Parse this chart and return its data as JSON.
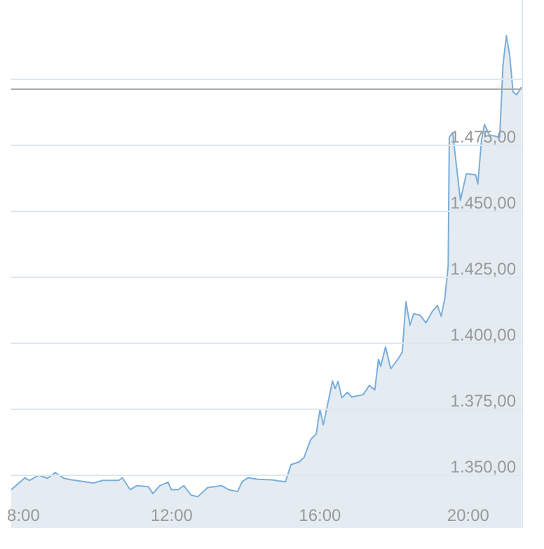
{
  "chart_data": {
    "type": "area",
    "x": [
      7.67,
      8.04,
      8.16,
      8.41,
      8.65,
      8.86,
      9.09,
      9.27,
      9.89,
      10.14,
      10.57,
      10.67,
      10.88,
      11.06,
      11.37,
      11.49,
      11.68,
      11.9,
      11.99,
      12.17,
      12.33,
      12.52,
      12.7,
      12.97,
      13.35,
      13.53,
      13.78,
      13.9,
      14.06,
      14.33,
      14.7,
      14.89,
      15.07,
      15.22,
      15.44,
      15.57,
      15.75,
      15.9,
      16.0,
      16.09,
      16.34,
      16.41,
      16.49,
      16.59,
      16.74,
      16.86,
      17.17,
      17.33,
      17.48,
      17.58,
      17.64,
      17.77,
      17.91,
      18.1,
      18.22,
      18.32,
      18.43,
      18.53,
      18.71,
      18.86,
      19.03,
      19.17,
      19.27,
      19.37,
      19.46,
      19.49,
      19.58,
      19.79,
      19.95,
      20.2,
      20.26,
      20.36,
      20.44,
      20.57,
      20.85,
      20.94,
      21.03,
      21.12,
      21.21,
      21.31,
      21.43
    ],
    "series": [
      {
        "color": "#7aaedc",
        "values": [
          1344.5,
          1349,
          1348,
          1350,
          1348.8,
          1351,
          1348.8,
          1348.3,
          1347,
          1348,
          1348,
          1349,
          1344.5,
          1346,
          1345.6,
          1343,
          1346,
          1347.3,
          1344.5,
          1344.5,
          1346,
          1342.5,
          1341.8,
          1345.3,
          1346,
          1344.5,
          1343.8,
          1347.5,
          1349,
          1348.4,
          1348.2,
          1347.8,
          1347.5,
          1354,
          1355,
          1356.7,
          1363.5,
          1365.6,
          1375,
          1369,
          1385.7,
          1382.8,
          1385.5,
          1379.3,
          1381.4,
          1379.6,
          1380.5,
          1384,
          1382.3,
          1393.9,
          1391.2,
          1398.6,
          1390.3,
          1393.9,
          1396.5,
          1415.7,
          1406.8,
          1411.2,
          1410.5,
          1407.7,
          1412,
          1414.3,
          1410.2,
          1417,
          1429.3,
          1478,
          1479.8,
          1454.1,
          1464.2,
          1463.8,
          1460.3,
          1477.1,
          1482.8,
          1478.9,
          1478,
          1505.5,
          1516.5,
          1509,
          1495.2,
          1494.1,
          1497
        ]
      }
    ],
    "xlim": [
      7.67,
      21.44
    ],
    "xticks": [
      {
        "value": 8,
        "label": "8:00"
      },
      {
        "value": 12,
        "label": "12:00"
      },
      {
        "value": 16,
        "label": "16:00"
      },
      {
        "value": 20,
        "label": "20:00"
      }
    ],
    "ylim": [
      1330,
      1530
    ],
    "yticks": [
      {
        "value": 1350,
        "label": "1.350,00"
      },
      {
        "value": 1375,
        "label": "1.375,00"
      },
      {
        "value": 1400,
        "label": "1.400,00"
      },
      {
        "value": 1425,
        "label": "1.425,00"
      },
      {
        "value": 1450,
        "label": "1.450,00"
      },
      {
        "value": 1475,
        "label": "1.475,00"
      },
      {
        "value": 1500,
        "label": null
      }
    ],
    "grid": "y",
    "ref_lines": [
      {
        "axis": "y",
        "value": 1496.3,
        "color": "#aaaaaa"
      }
    ]
  }
}
